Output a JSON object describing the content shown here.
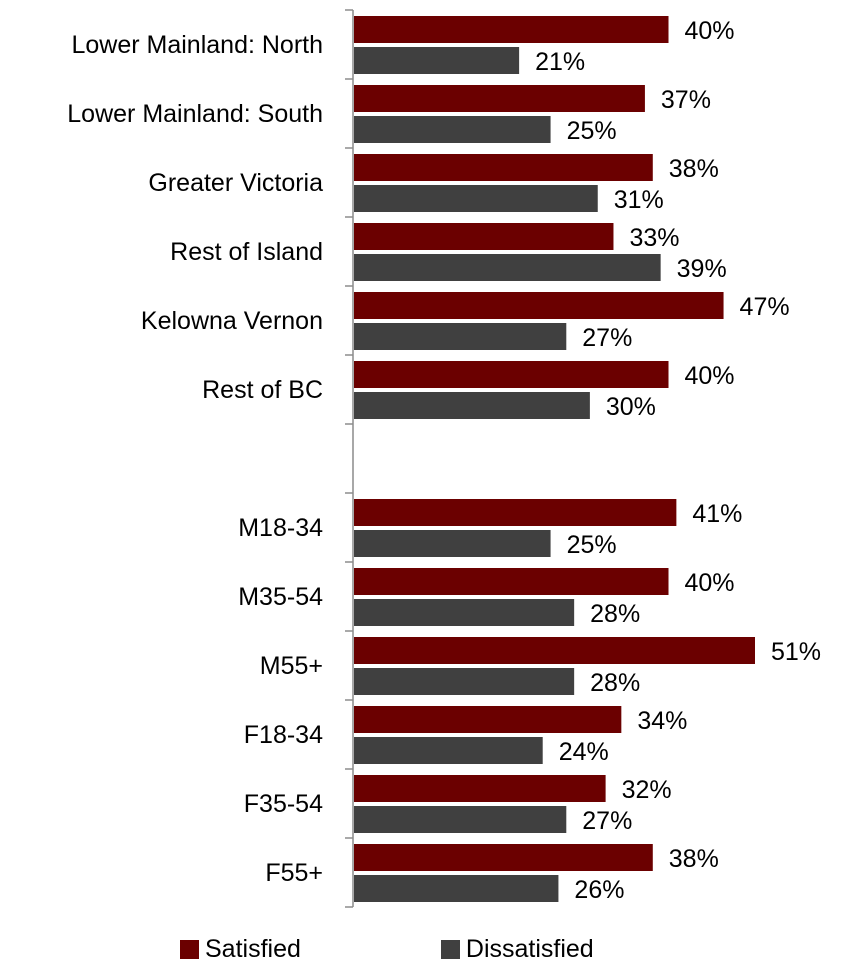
{
  "chart_data": {
    "type": "bar",
    "orientation": "horizontal",
    "categories": [
      "Lower Mainland: North",
      "Lower Mainland: South",
      "Greater Victoria",
      "Rest of Island",
      "Kelowna Vernon",
      "Rest of BC",
      "",
      "M18-34",
      "M35-54",
      "M55+",
      "F18-34",
      "F35-54",
      "F55+"
    ],
    "series": [
      {
        "name": "Satisfied",
        "color": "#6b0000",
        "values": [
          40,
          37,
          38,
          33,
          47,
          40,
          null,
          41,
          40,
          51,
          34,
          32,
          38
        ]
      },
      {
        "name": "Dissatisfied",
        "color": "#404040",
        "values": [
          21,
          25,
          31,
          39,
          27,
          30,
          null,
          25,
          28,
          28,
          24,
          27,
          26
        ]
      }
    ],
    "value_suffix": "%",
    "xlim": [
      0,
      55
    ],
    "legend_position": "bottom",
    "grid": false
  },
  "legend": {
    "satisfied_label": "Satisfied",
    "dissatisfied_label": "Dissatisfied"
  }
}
